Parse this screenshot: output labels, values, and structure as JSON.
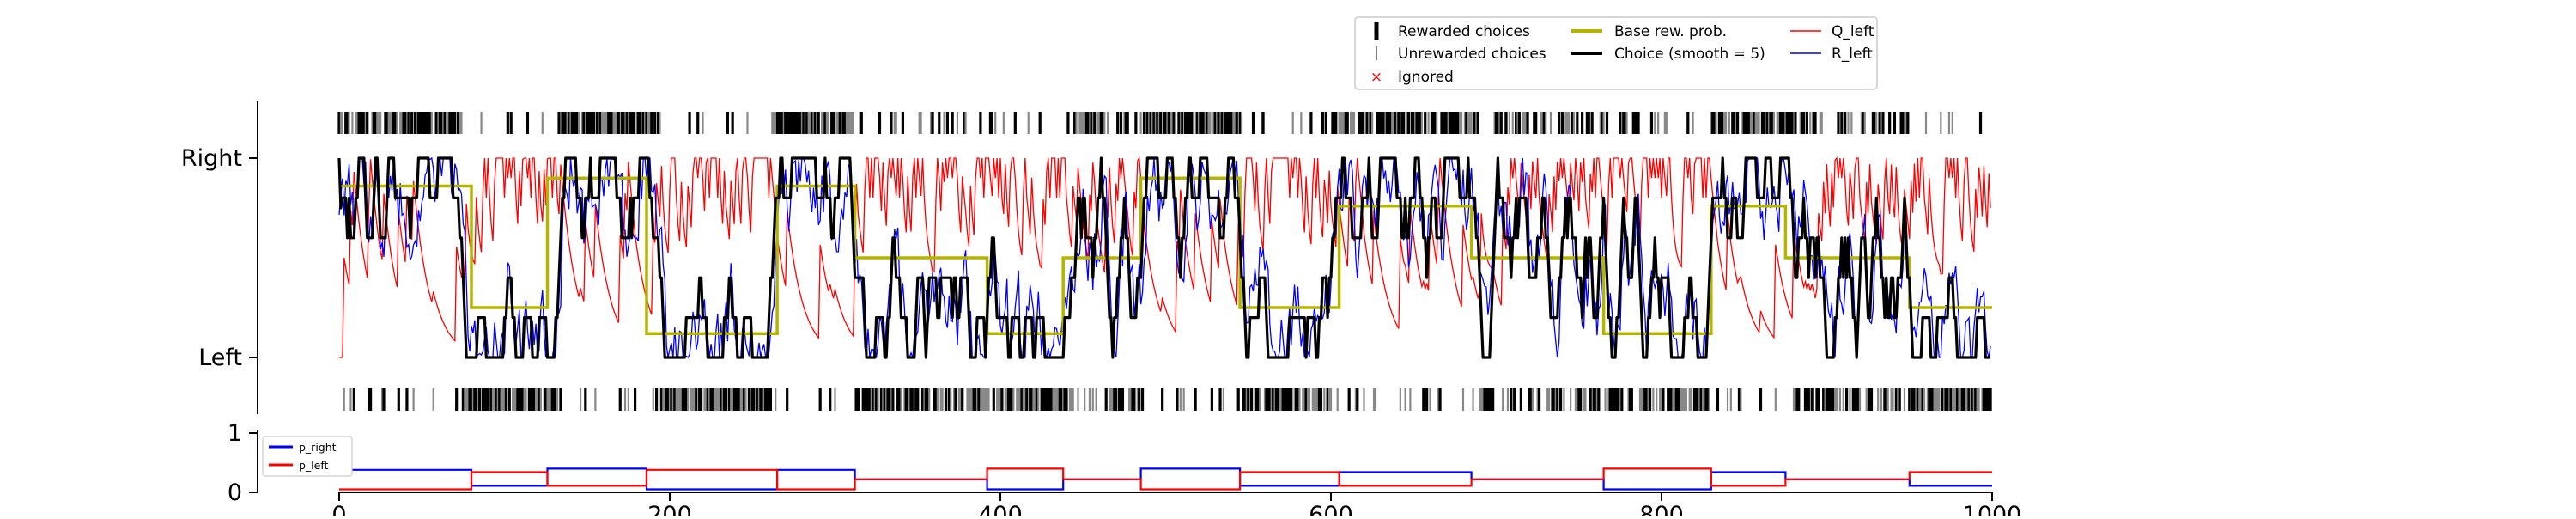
{
  "chart_data": [
    {
      "type": "line",
      "title": "",
      "xlabel": "",
      "ylabel": "",
      "xlim": [
        0,
        1000
      ],
      "ylim": [
        -0.15,
        1.25
      ],
      "yticks": [
        {
          "value": 0,
          "label": "Left"
        },
        {
          "value": 1,
          "label": "Right"
        }
      ],
      "grid": false,
      "legend": {
        "placement": "top-right",
        "entries": [
          {
            "label": "Rewarded choices",
            "marker": "thick-tick",
            "color": "#000000"
          },
          {
            "label": "Unrewarded choices",
            "marker": "thin-tick",
            "color": "#555555"
          },
          {
            "label": "Ignored",
            "marker": "x",
            "color": "#ff0000"
          },
          {
            "label": "Base rew. prob.",
            "marker": "line",
            "color": "#b5b500"
          },
          {
            "label": "Choice (smooth = 5)",
            "marker": "line",
            "color": "#000000"
          },
          {
            "label": "Q_left",
            "marker": "line",
            "color": "#ff0000"
          },
          {
            "label": "R_left",
            "marker": "line",
            "color": "#0000ff"
          }
        ]
      },
      "base_rew_prob": {
        "name": "Base rew. prob.",
        "x": [
          0,
          80,
          80,
          126,
          126,
          186,
          186,
          265,
          265,
          312,
          312,
          392,
          392,
          438,
          438,
          485,
          485,
          545,
          545,
          605,
          605,
          685,
          685,
          765,
          765,
          830,
          830,
          875,
          875,
          950,
          950,
          1000
        ],
        "y": [
          0.86,
          0.86,
          0.25,
          0.25,
          0.9,
          0.9,
          0.12,
          0.12,
          0.86,
          0.86,
          0.5,
          0.5,
          0.12,
          0.12,
          0.5,
          0.5,
          0.9,
          0.9,
          0.25,
          0.25,
          0.76,
          0.76,
          0.5,
          0.5,
          0.12,
          0.12,
          0.76,
          0.76,
          0.5,
          0.5,
          0.25,
          0.25
        ]
      },
      "choice_blocks": [
        {
          "start": 0,
          "end": 75,
          "side": "right"
        },
        {
          "start": 75,
          "end": 135,
          "side": "left"
        },
        {
          "start": 135,
          "end": 190,
          "side": "right"
        },
        {
          "start": 190,
          "end": 265,
          "side": "left"
        },
        {
          "start": 265,
          "end": 312,
          "side": "right"
        },
        {
          "start": 312,
          "end": 395,
          "side": "left"
        },
        {
          "start": 395,
          "end": 445,
          "side": "left"
        },
        {
          "start": 445,
          "end": 485,
          "side": "mixed"
        },
        {
          "start": 485,
          "end": 548,
          "side": "right"
        },
        {
          "start": 548,
          "end": 600,
          "side": "left"
        },
        {
          "start": 600,
          "end": 690,
          "side": "right"
        },
        {
          "start": 690,
          "end": 770,
          "side": "mixed"
        },
        {
          "start": 770,
          "end": 830,
          "side": "left"
        },
        {
          "start": 830,
          "end": 880,
          "side": "right"
        },
        {
          "start": 880,
          "end": 950,
          "side": "mixed"
        },
        {
          "start": 950,
          "end": 1000,
          "side": "left"
        }
      ]
    },
    {
      "type": "line",
      "title": "",
      "xlabel": "",
      "ylabel": "",
      "xlim": [
        0,
        1000
      ],
      "ylim": [
        0,
        1
      ],
      "yticks": [
        0,
        1
      ],
      "xticks": [
        0,
        200,
        400,
        600,
        800,
        1000
      ],
      "grid": false,
      "legend": {
        "placement": "top-left"
      },
      "series": [
        {
          "name": "p_right",
          "color": "#0000ff",
          "x": [
            0,
            80,
            80,
            126,
            126,
            186,
            186,
            265,
            265,
            312,
            312,
            392,
            392,
            438,
            438,
            485,
            485,
            545,
            545,
            605,
            605,
            685,
            685,
            765,
            765,
            830,
            830,
            875,
            875,
            950,
            950,
            1000
          ],
          "y": [
            0.38,
            0.38,
            0.11,
            0.11,
            0.4,
            0.4,
            0.05,
            0.05,
            0.38,
            0.38,
            0.22,
            0.22,
            0.05,
            0.05,
            0.22,
            0.22,
            0.4,
            0.4,
            0.11,
            0.11,
            0.34,
            0.34,
            0.22,
            0.22,
            0.05,
            0.05,
            0.34,
            0.34,
            0.22,
            0.22,
            0.11,
            0.11
          ]
        },
        {
          "name": "p_left",
          "color": "#ff0000",
          "x": [
            0,
            80,
            80,
            126,
            126,
            186,
            186,
            265,
            265,
            312,
            312,
            392,
            392,
            438,
            438,
            485,
            485,
            545,
            545,
            605,
            605,
            685,
            685,
            765,
            765,
            830,
            830,
            875,
            875,
            950,
            950,
            1000
          ],
          "y": [
            0.05,
            0.05,
            0.34,
            0.34,
            0.11,
            0.11,
            0.38,
            0.38,
            0.05,
            0.05,
            0.22,
            0.22,
            0.4,
            0.4,
            0.22,
            0.22,
            0.05,
            0.05,
            0.34,
            0.34,
            0.11,
            0.11,
            0.22,
            0.22,
            0.4,
            0.4,
            0.11,
            0.11,
            0.22,
            0.22,
            0.34,
            0.34
          ]
        }
      ]
    }
  ]
}
